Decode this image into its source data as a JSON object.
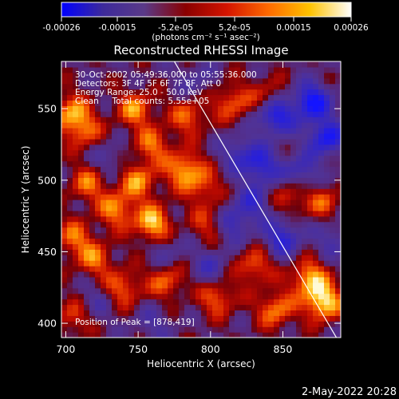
{
  "colorbar": {
    "ticks": [
      "-0.00026",
      "-0.00015",
      "-5.2e-05",
      "5.2e-05",
      "0.00015",
      "0.00026"
    ],
    "unit_label": "(photons cm⁻² s⁻¹ asec⁻²)",
    "colors": [
      "#0000ff",
      "#3d2a9b",
      "#5a3a88",
      "#8a0000",
      "#d41400",
      "#ff6a00",
      "#ffc200",
      "#ffffff"
    ]
  },
  "chart_data": {
    "type": "heatmap",
    "title": "Reconstructed RHESSI Image",
    "xlabel": "Heliocentric X (arcsec)",
    "ylabel": "Heliocentric Y (arcsec)",
    "xlim": [
      697,
      890
    ],
    "ylim": [
      390,
      583
    ],
    "xticks": [
      700,
      750,
      800,
      850
    ],
    "yticks": [
      400,
      450,
      500,
      550
    ],
    "info_lines": [
      "30-Oct-2002 05:49:36.000 to 05:55:36.000",
      "Detectors: 3F 4F 5F 6F 7F 8F, Att 0",
      "Energy Range: 25.0 - 50.0 keV",
      "Clean     Total counts: 5.55e+05"
    ],
    "peak_label": "Position of Peak = [878,419]",
    "peak": [
      878,
      419
    ],
    "limb_line": [
      [
        775,
        583
      ],
      [
        887,
        390
      ]
    ],
    "sources": [
      {
        "x": 878,
        "y": 415,
        "v": 1.0
      },
      {
        "x": 868,
        "y": 432,
        "v": 0.8
      },
      {
        "x": 845,
        "y": 410,
        "v": 0.7
      },
      {
        "x": 830,
        "y": 440,
        "v": 0.6
      },
      {
        "x": 703,
        "y": 548,
        "v": 0.7
      },
      {
        "x": 712,
        "y": 535,
        "v": 0.6
      },
      {
        "x": 748,
        "y": 550,
        "v": 0.7
      },
      {
        "x": 760,
        "y": 525,
        "v": 0.6
      },
      {
        "x": 785,
        "y": 545,
        "v": 0.6
      },
      {
        "x": 750,
        "y": 500,
        "v": 0.7
      },
      {
        "x": 782,
        "y": 508,
        "v": 0.8
      },
      {
        "x": 815,
        "y": 555,
        "v": 0.6
      },
      {
        "x": 715,
        "y": 498,
        "v": 0.6
      },
      {
        "x": 705,
        "y": 460,
        "v": 0.6
      },
      {
        "x": 735,
        "y": 480,
        "v": 0.7
      },
      {
        "x": 760,
        "y": 470,
        "v": 0.9
      },
      {
        "x": 720,
        "y": 445,
        "v": 0.6
      },
      {
        "x": 740,
        "y": 425,
        "v": 0.6
      },
      {
        "x": 770,
        "y": 430,
        "v": 0.6
      },
      {
        "x": 805,
        "y": 418,
        "v": 0.6
      },
      {
        "x": 855,
        "y": 490,
        "v": 0.5
      },
      {
        "x": 878,
        "y": 485,
        "v": 0.5
      },
      {
        "x": 800,
        "y": 470,
        "v": 0.5
      },
      {
        "x": 840,
        "y": 560,
        "v": 0.4
      },
      {
        "x": 705,
        "y": 405,
        "v": 0.5
      },
      {
        "x": 795,
        "y": 495,
        "v": 0.5
      },
      {
        "x": 820,
        "y": 520,
        "v": -0.5
      },
      {
        "x": 845,
        "y": 545,
        "v": -0.9
      },
      {
        "x": 870,
        "y": 555,
        "v": -1.0
      },
      {
        "x": 880,
        "y": 530,
        "v": -0.9
      },
      {
        "x": 835,
        "y": 510,
        "v": -0.7
      },
      {
        "x": 862,
        "y": 505,
        "v": -0.6
      },
      {
        "x": 815,
        "y": 470,
        "v": -0.6
      },
      {
        "x": 850,
        "y": 460,
        "v": -0.7
      },
      {
        "x": 830,
        "y": 485,
        "v": -0.5
      },
      {
        "x": 770,
        "y": 450,
        "v": -0.3
      },
      {
        "x": 800,
        "y": 440,
        "v": -0.4
      },
      {
        "x": 730,
        "y": 515,
        "v": -0.3
      },
      {
        "x": 760,
        "y": 400,
        "v": -0.3
      },
      {
        "x": 720,
        "y": 415,
        "v": -0.3
      },
      {
        "x": 790,
        "y": 570,
        "v": -0.3
      },
      {
        "x": 885,
        "y": 460,
        "v": -0.4
      }
    ]
  },
  "footer": {
    "timestamp": "2-May-2022 20:28"
  }
}
